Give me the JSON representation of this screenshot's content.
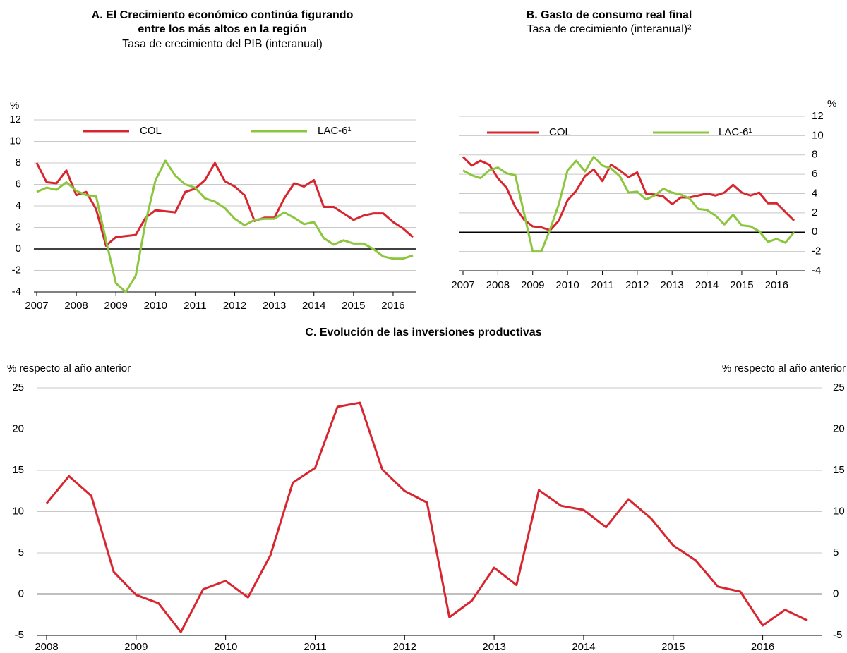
{
  "chart_data": [
    {
      "type": "line",
      "title": [
        "A.    El Crecimiento económico continúa figurando",
        "entre los más altos en la región"
      ],
      "subtitle": "Tasa de crecimiento del PIB (interanual)",
      "y_label": "%",
      "y_axis_side": "left",
      "categories": [
        "2007",
        null,
        null,
        null,
        "2008",
        null,
        null,
        null,
        "2009",
        null,
        null,
        null,
        "2010",
        null,
        null,
        null,
        "2011",
        null,
        null,
        null,
        "2012",
        null,
        null,
        null,
        "2013",
        null,
        null,
        null,
        "2014",
        null,
        null,
        null,
        "2015",
        null,
        null,
        null,
        "2016",
        null,
        null
      ],
      "series": [
        {
          "name": "COL",
          "color": "#d7262f",
          "values": [
            8.0,
            6.2,
            6.1,
            7.3,
            5.0,
            5.3,
            3.7,
            0.3,
            1.1,
            1.2,
            1.3,
            2.9,
            3.6,
            3.5,
            3.4,
            5.3,
            5.6,
            6.4,
            8.0,
            6.3,
            5.8,
            5.0,
            2.6,
            2.9,
            2.9,
            4.7,
            6.1,
            5.8,
            6.4,
            3.9,
            3.9,
            3.3,
            2.7,
            3.1,
            3.3,
            3.3,
            2.5,
            1.9,
            1.1
          ]
        },
        {
          "name": "LAC-6¹",
          "color": "#8cc63f",
          "values": [
            5.3,
            5.7,
            5.5,
            6.2,
            5.4,
            5.0,
            4.9,
            0.8,
            -3.2,
            -4.0,
            -2.5,
            2.5,
            6.4,
            8.2,
            6.8,
            6.0,
            5.7,
            4.7,
            4.4,
            3.8,
            2.8,
            2.2,
            2.7,
            2.8,
            2.8,
            3.4,
            2.9,
            2.3,
            2.5,
            1.0,
            0.4,
            0.8,
            0.5,
            0.5,
            0.0,
            -0.7,
            -0.9,
            -0.9,
            -0.6
          ]
        }
      ],
      "ylim": [
        -4,
        12
      ],
      "yticks": [
        -4,
        -2,
        0,
        2,
        4,
        6,
        8,
        10,
        12
      ],
      "grid": true,
      "legend": "top"
    },
    {
      "type": "line",
      "title": [
        "B.    Gasto de consumo real final"
      ],
      "subtitle": "Tasa de crecimiento (interanual)²",
      "y_label": "%",
      "y_axis_side": "right",
      "categories": [
        "2007",
        null,
        null,
        null,
        "2008",
        null,
        null,
        null,
        "2009",
        null,
        null,
        null,
        "2010",
        null,
        null,
        null,
        "2011",
        null,
        null,
        null,
        "2012",
        null,
        null,
        null,
        "2013",
        null,
        null,
        null,
        "2014",
        null,
        null,
        null,
        "2015",
        null,
        null,
        null,
        "2016",
        null,
        null
      ],
      "series": [
        {
          "name": "COL",
          "color": "#d7262f",
          "values": [
            7.8,
            6.9,
            7.4,
            7.0,
            5.6,
            4.6,
            2.6,
            1.3,
            0.6,
            0.5,
            0.2,
            1.2,
            3.3,
            4.3,
            5.8,
            6.5,
            5.3,
            7.0,
            6.4,
            5.7,
            6.2,
            4.0,
            3.9,
            3.7,
            2.9,
            3.6,
            3.6,
            3.8,
            4.0,
            3.8,
            4.1,
            4.9,
            4.1,
            3.8,
            4.1,
            3.0,
            3.0,
            2.1,
            1.2
          ]
        },
        {
          "name": "LAC-6¹",
          "color": "#8cc63f",
          "values": [
            6.4,
            5.9,
            5.6,
            6.4,
            6.7,
            6.1,
            5.9,
            2.0,
            -2.0,
            -2.0,
            0.3,
            2.9,
            6.4,
            7.4,
            6.3,
            7.8,
            6.9,
            6.6,
            5.8,
            4.1,
            4.2,
            3.4,
            3.8,
            4.5,
            4.1,
            3.9,
            3.5,
            2.4,
            2.3,
            1.7,
            0.8,
            1.8,
            0.7,
            0.6,
            0.1,
            -1.0,
            -0.7,
            -1.1,
            0.0
          ]
        }
      ],
      "ylim": [
        -4,
        12
      ],
      "yticks": [
        -4,
        -2,
        0,
        2,
        4,
        6,
        8,
        10,
        12
      ],
      "grid": true,
      "legend": "top"
    },
    {
      "type": "line",
      "title": [
        "C.    Evolución de las inversiones productivas"
      ],
      "y_label": "% respecto al año anterior",
      "y2_label": "% respecto al año anterior",
      "y_axis_side": "left",
      "categories": [
        "2008",
        null,
        null,
        null,
        "2009",
        null,
        null,
        null,
        "2010",
        null,
        null,
        null,
        "2011",
        null,
        null,
        null,
        "2012",
        null,
        null,
        null,
        "2013",
        null,
        null,
        null,
        "2014",
        null,
        null,
        null,
        "2015",
        null,
        null,
        null,
        "2016",
        null,
        null
      ],
      "series": [
        {
          "name": "COL",
          "color": "#d7262f",
          "values": [
            11.0,
            14.3,
            11.9,
            2.7,
            -0.1,
            -1.1,
            -4.6,
            0.6,
            1.6,
            -0.4,
            4.7,
            13.5,
            15.3,
            22.7,
            23.2,
            15.1,
            12.5,
            11.1,
            -2.8,
            -0.8,
            3.2,
            1.1,
            12.6,
            10.7,
            10.2,
            8.1,
            11.5,
            9.2,
            5.9,
            4.1,
            0.9,
            0.3,
            -3.8,
            -1.9,
            -3.2
          ]
        }
      ],
      "ylim": [
        -5,
        25
      ],
      "yticks": [
        -5,
        0,
        5,
        10,
        15,
        20,
        25
      ],
      "y2lim": [
        -5,
        25
      ],
      "y2ticks": [
        -5,
        0,
        5,
        10,
        15,
        20,
        25
      ],
      "grid": true
    }
  ]
}
